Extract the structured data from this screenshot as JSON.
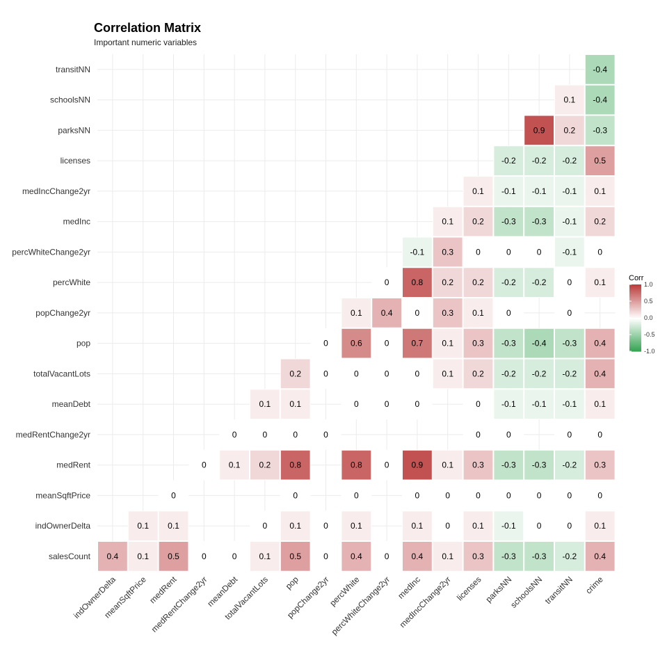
{
  "chart_data": {
    "type": "heatmap",
    "title": "Correlation Matrix",
    "subtitle": "Important numeric variables",
    "x_categories": [
      "indOwnerDelta",
      "meanSqftPrice",
      "medRent",
      "medRentChange2yr",
      "meanDebt",
      "totalVacantLots",
      "pop",
      "popChange2yr",
      "percWhite",
      "percWhiteChange2yr",
      "medInc",
      "medIncChange2yr",
      "licenses",
      "parksNN",
      "schoolsNN",
      "transitNN",
      "crime"
    ],
    "y_categories": [
      "salesCount",
      "indOwnerDelta",
      "meanSqftPrice",
      "medRent",
      "medRentChange2yr",
      "meanDebt",
      "totalVacantLots",
      "pop",
      "popChange2yr",
      "percWhite",
      "percWhiteChange2yr",
      "medInc",
      "medIncChange2yr",
      "licenses",
      "parksNN",
      "schoolsNN",
      "transitNN"
    ],
    "cells": [
      {
        "x": "indOwnerDelta",
        "y": "salesCount",
        "value": 0.4
      },
      {
        "x": "meanSqftPrice",
        "y": "salesCount",
        "value": 0.1
      },
      {
        "x": "medRent",
        "y": "salesCount",
        "value": 0.5
      },
      {
        "x": "medRentChange2yr",
        "y": "salesCount",
        "value": 0
      },
      {
        "x": "meanDebt",
        "y": "salesCount",
        "value": 0
      },
      {
        "x": "totalVacantLots",
        "y": "salesCount",
        "value": 0.1
      },
      {
        "x": "pop",
        "y": "salesCount",
        "value": 0.5
      },
      {
        "x": "popChange2yr",
        "y": "salesCount",
        "value": 0
      },
      {
        "x": "percWhite",
        "y": "salesCount",
        "value": 0.4
      },
      {
        "x": "percWhiteChange2yr",
        "y": "salesCount",
        "value": 0
      },
      {
        "x": "medInc",
        "y": "salesCount",
        "value": 0.4
      },
      {
        "x": "medIncChange2yr",
        "y": "salesCount",
        "value": 0.1
      },
      {
        "x": "licenses",
        "y": "salesCount",
        "value": 0.3
      },
      {
        "x": "parksNN",
        "y": "salesCount",
        "value": -0.3
      },
      {
        "x": "schoolsNN",
        "y": "salesCount",
        "value": -0.3
      },
      {
        "x": "transitNN",
        "y": "salesCount",
        "value": -0.2
      },
      {
        "x": "crime",
        "y": "salesCount",
        "value": 0.4
      },
      {
        "x": "meanSqftPrice",
        "y": "indOwnerDelta",
        "value": 0.1
      },
      {
        "x": "medRent",
        "y": "indOwnerDelta",
        "value": 0.1
      },
      {
        "x": "totalVacantLots",
        "y": "indOwnerDelta",
        "value": 0
      },
      {
        "x": "pop",
        "y": "indOwnerDelta",
        "value": 0.1
      },
      {
        "x": "popChange2yr",
        "y": "indOwnerDelta",
        "value": 0
      },
      {
        "x": "percWhite",
        "y": "indOwnerDelta",
        "value": 0.1
      },
      {
        "x": "medInc",
        "y": "indOwnerDelta",
        "value": 0.1
      },
      {
        "x": "medIncChange2yr",
        "y": "indOwnerDelta",
        "value": 0
      },
      {
        "x": "licenses",
        "y": "indOwnerDelta",
        "value": 0.1
      },
      {
        "x": "parksNN",
        "y": "indOwnerDelta",
        "value": -0.1
      },
      {
        "x": "schoolsNN",
        "y": "indOwnerDelta",
        "value": 0
      },
      {
        "x": "transitNN",
        "y": "indOwnerDelta",
        "value": 0
      },
      {
        "x": "crime",
        "y": "indOwnerDelta",
        "value": 0.1
      },
      {
        "x": "medRent",
        "y": "meanSqftPrice",
        "value": 0
      },
      {
        "x": "pop",
        "y": "meanSqftPrice",
        "value": 0
      },
      {
        "x": "percWhite",
        "y": "meanSqftPrice",
        "value": 0
      },
      {
        "x": "medInc",
        "y": "meanSqftPrice",
        "value": 0
      },
      {
        "x": "medIncChange2yr",
        "y": "meanSqftPrice",
        "value": 0
      },
      {
        "x": "licenses",
        "y": "meanSqftPrice",
        "value": 0
      },
      {
        "x": "parksNN",
        "y": "meanSqftPrice",
        "value": 0
      },
      {
        "x": "schoolsNN",
        "y": "meanSqftPrice",
        "value": 0
      },
      {
        "x": "transitNN",
        "y": "meanSqftPrice",
        "value": 0
      },
      {
        "x": "crime",
        "y": "meanSqftPrice",
        "value": 0
      },
      {
        "x": "medRentChange2yr",
        "y": "medRent",
        "value": 0
      },
      {
        "x": "meanDebt",
        "y": "medRent",
        "value": 0.1
      },
      {
        "x": "totalVacantLots",
        "y": "medRent",
        "value": 0.2
      },
      {
        "x": "pop",
        "y": "medRent",
        "value": 0.8
      },
      {
        "x": "percWhite",
        "y": "medRent",
        "value": 0.8
      },
      {
        "x": "percWhiteChange2yr",
        "y": "medRent",
        "value": 0
      },
      {
        "x": "medInc",
        "y": "medRent",
        "value": 0.9
      },
      {
        "x": "medIncChange2yr",
        "y": "medRent",
        "value": 0.1
      },
      {
        "x": "licenses",
        "y": "medRent",
        "value": 0.3
      },
      {
        "x": "parksNN",
        "y": "medRent",
        "value": -0.3
      },
      {
        "x": "schoolsNN",
        "y": "medRent",
        "value": -0.3
      },
      {
        "x": "transitNN",
        "y": "medRent",
        "value": -0.2
      },
      {
        "x": "crime",
        "y": "medRent",
        "value": 0.3
      },
      {
        "x": "meanDebt",
        "y": "medRentChange2yr",
        "value": 0
      },
      {
        "x": "totalVacantLots",
        "y": "medRentChange2yr",
        "value": 0
      },
      {
        "x": "pop",
        "y": "medRentChange2yr",
        "value": 0
      },
      {
        "x": "popChange2yr",
        "y": "medRentChange2yr",
        "value": 0
      },
      {
        "x": "licenses",
        "y": "medRentChange2yr",
        "value": 0
      },
      {
        "x": "parksNN",
        "y": "medRentChange2yr",
        "value": 0
      },
      {
        "x": "transitNN",
        "y": "medRentChange2yr",
        "value": 0
      },
      {
        "x": "crime",
        "y": "medRentChange2yr",
        "value": 0
      },
      {
        "x": "totalVacantLots",
        "y": "meanDebt",
        "value": 0.1
      },
      {
        "x": "pop",
        "y": "meanDebt",
        "value": 0.1
      },
      {
        "x": "percWhite",
        "y": "meanDebt",
        "value": 0
      },
      {
        "x": "percWhiteChange2yr",
        "y": "meanDebt",
        "value": 0
      },
      {
        "x": "medInc",
        "y": "meanDebt",
        "value": 0
      },
      {
        "x": "licenses",
        "y": "meanDebt",
        "value": 0
      },
      {
        "x": "parksNN",
        "y": "meanDebt",
        "value": -0.1
      },
      {
        "x": "schoolsNN",
        "y": "meanDebt",
        "value": -0.1
      },
      {
        "x": "transitNN",
        "y": "meanDebt",
        "value": -0.1
      },
      {
        "x": "crime",
        "y": "meanDebt",
        "value": 0.1
      },
      {
        "x": "pop",
        "y": "totalVacantLots",
        "value": 0.2
      },
      {
        "x": "popChange2yr",
        "y": "totalVacantLots",
        "value": 0
      },
      {
        "x": "percWhite",
        "y": "totalVacantLots",
        "value": 0
      },
      {
        "x": "percWhiteChange2yr",
        "y": "totalVacantLots",
        "value": 0
      },
      {
        "x": "medInc",
        "y": "totalVacantLots",
        "value": 0
      },
      {
        "x": "medIncChange2yr",
        "y": "totalVacantLots",
        "value": 0.1
      },
      {
        "x": "licenses",
        "y": "totalVacantLots",
        "value": 0.2
      },
      {
        "x": "parksNN",
        "y": "totalVacantLots",
        "value": -0.2
      },
      {
        "x": "schoolsNN",
        "y": "totalVacantLots",
        "value": -0.2
      },
      {
        "x": "transitNN",
        "y": "totalVacantLots",
        "value": -0.2
      },
      {
        "x": "crime",
        "y": "totalVacantLots",
        "value": 0.4
      },
      {
        "x": "popChange2yr",
        "y": "pop",
        "value": 0
      },
      {
        "x": "percWhite",
        "y": "pop",
        "value": 0.6
      },
      {
        "x": "percWhiteChange2yr",
        "y": "pop",
        "value": 0
      },
      {
        "x": "medInc",
        "y": "pop",
        "value": 0.7
      },
      {
        "x": "medIncChange2yr",
        "y": "pop",
        "value": 0.1
      },
      {
        "x": "licenses",
        "y": "pop",
        "value": 0.3
      },
      {
        "x": "parksNN",
        "y": "pop",
        "value": -0.3
      },
      {
        "x": "schoolsNN",
        "y": "pop",
        "value": -0.4
      },
      {
        "x": "transitNN",
        "y": "pop",
        "value": -0.3
      },
      {
        "x": "crime",
        "y": "pop",
        "value": 0.4
      },
      {
        "x": "percWhite",
        "y": "popChange2yr",
        "value": 0.1
      },
      {
        "x": "percWhiteChange2yr",
        "y": "popChange2yr",
        "value": 0.4
      },
      {
        "x": "medInc",
        "y": "popChange2yr",
        "value": 0
      },
      {
        "x": "medIncChange2yr",
        "y": "popChange2yr",
        "value": 0.3
      },
      {
        "x": "licenses",
        "y": "popChange2yr",
        "value": 0.1
      },
      {
        "x": "parksNN",
        "y": "popChange2yr",
        "value": 0
      },
      {
        "x": "transitNN",
        "y": "popChange2yr",
        "value": 0
      },
      {
        "x": "percWhiteChange2yr",
        "y": "percWhite",
        "value": 0
      },
      {
        "x": "medInc",
        "y": "percWhite",
        "value": 0.8
      },
      {
        "x": "medIncChange2yr",
        "y": "percWhite",
        "value": 0.2
      },
      {
        "x": "licenses",
        "y": "percWhite",
        "value": 0.2
      },
      {
        "x": "parksNN",
        "y": "percWhite",
        "value": -0.2
      },
      {
        "x": "schoolsNN",
        "y": "percWhite",
        "value": -0.2
      },
      {
        "x": "transitNN",
        "y": "percWhite",
        "value": 0
      },
      {
        "x": "crime",
        "y": "percWhite",
        "value": 0.1
      },
      {
        "x": "medInc",
        "y": "percWhiteChange2yr",
        "value": -0.1
      },
      {
        "x": "medIncChange2yr",
        "y": "percWhiteChange2yr",
        "value": 0.3
      },
      {
        "x": "licenses",
        "y": "percWhiteChange2yr",
        "value": 0
      },
      {
        "x": "parksNN",
        "y": "percWhiteChange2yr",
        "value": 0
      },
      {
        "x": "schoolsNN",
        "y": "percWhiteChange2yr",
        "value": 0
      },
      {
        "x": "transitNN",
        "y": "percWhiteChange2yr",
        "value": -0.1
      },
      {
        "x": "crime",
        "y": "percWhiteChange2yr",
        "value": 0
      },
      {
        "x": "medIncChange2yr",
        "y": "medInc",
        "value": 0.1
      },
      {
        "x": "licenses",
        "y": "medInc",
        "value": 0.2
      },
      {
        "x": "parksNN",
        "y": "medInc",
        "value": -0.3
      },
      {
        "x": "schoolsNN",
        "y": "medInc",
        "value": -0.3
      },
      {
        "x": "transitNN",
        "y": "medInc",
        "value": -0.1
      },
      {
        "x": "crime",
        "y": "medInc",
        "value": 0.2
      },
      {
        "x": "licenses",
        "y": "medIncChange2yr",
        "value": 0.1
      },
      {
        "x": "parksNN",
        "y": "medIncChange2yr",
        "value": -0.1
      },
      {
        "x": "schoolsNN",
        "y": "medIncChange2yr",
        "value": -0.1
      },
      {
        "x": "transitNN",
        "y": "medIncChange2yr",
        "value": -0.1
      },
      {
        "x": "crime",
        "y": "medIncChange2yr",
        "value": 0.1
      },
      {
        "x": "parksNN",
        "y": "licenses",
        "value": -0.2
      },
      {
        "x": "schoolsNN",
        "y": "licenses",
        "value": -0.2
      },
      {
        "x": "transitNN",
        "y": "licenses",
        "value": -0.2
      },
      {
        "x": "crime",
        "y": "licenses",
        "value": 0.5
      },
      {
        "x": "schoolsNN",
        "y": "parksNN",
        "value": 0.9
      },
      {
        "x": "transitNN",
        "y": "parksNN",
        "value": 0.2
      },
      {
        "x": "crime",
        "y": "parksNN",
        "value": -0.3
      },
      {
        "x": "transitNN",
        "y": "schoolsNN",
        "value": 0.1
      },
      {
        "x": "crime",
        "y": "schoolsNN",
        "value": -0.4
      },
      {
        "x": "crime",
        "y": "transitNN",
        "value": -0.4
      }
    ],
    "legend": {
      "title": "Corr",
      "ticks": [
        "1.0",
        "0.5",
        "0.0",
        "-0.5",
        "-1.0"
      ],
      "tick_values": [
        1.0,
        0.5,
        0.0,
        -0.5,
        -1.0
      ],
      "placement": "right"
    },
    "colors": {
      "high": "#bb3e3e",
      "mid": "#ffffff",
      "low": "#30a14e",
      "grid": "#ebebeb",
      "text": "#000000",
      "axis_text": "#333333"
    },
    "value_range": [
      -1,
      1
    ],
    "grid": true
  }
}
